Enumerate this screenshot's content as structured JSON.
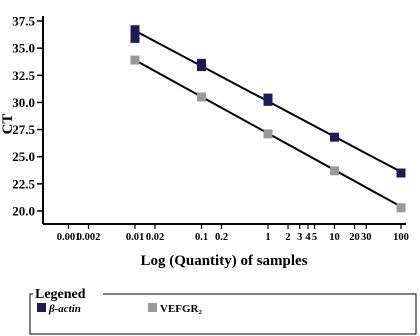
{
  "chart_data": {
    "type": "scatter",
    "xlabel": "Log (Quantity) of samples",
    "ylabel": "CT",
    "x_scale": "log",
    "xlim": [
      0.001,
      100
    ],
    "ylim": [
      19.5,
      38
    ],
    "x_ticks": [
      0.001,
      0.002,
      0.01,
      0.02,
      0.1,
      0.2,
      1,
      2,
      3,
      4,
      5,
      10,
      20,
      30,
      100
    ],
    "x_tick_labels": [
      "0.001",
      "0.002",
      "0.01",
      "0.02",
      "0.1",
      "0.2",
      "1",
      "2",
      "3",
      "4",
      "5",
      "10",
      "20",
      "30",
      "100"
    ],
    "y_ticks": [
      20.0,
      22.5,
      25.0,
      27.5,
      30.0,
      32.5,
      35.0,
      37.5
    ],
    "y_tick_labels": [
      "20.0",
      "22.5",
      "25.0",
      "27.5",
      "30.0",
      "32.5",
      "35.0",
      "37.5"
    ],
    "grid": false,
    "legend_title": "Legened",
    "legend_position": "bottom",
    "series": [
      {
        "name": "β-actin",
        "color": "#1b1b5e",
        "marker": "square",
        "points": [
          {
            "x": 0.01,
            "y": 36.7
          },
          {
            "x": 0.01,
            "y": 35.9
          },
          {
            "x": 0.1,
            "y": 33.6
          },
          {
            "x": 0.1,
            "y": 33.3
          },
          {
            "x": 1,
            "y": 30.4
          },
          {
            "x": 1,
            "y": 30.1
          },
          {
            "x": 10,
            "y": 26.8
          },
          {
            "x": 100,
            "y": 23.5
          }
        ],
        "fit": {
          "x": [
            0.01,
            100
          ],
          "y": [
            36.6,
            23.6
          ]
        }
      },
      {
        "name": "VEFGR₂",
        "color": "#999999",
        "marker": "square",
        "points": [
          {
            "x": 0.01,
            "y": 33.9
          },
          {
            "x": 0.1,
            "y": 30.5
          },
          {
            "x": 1,
            "y": 27.1
          },
          {
            "x": 10,
            "y": 23.7
          },
          {
            "x": 100,
            "y": 20.3
          }
        ],
        "fit": {
          "x": [
            0.01,
            100
          ],
          "y": [
            33.9,
            20.4
          ]
        }
      }
    ]
  }
}
